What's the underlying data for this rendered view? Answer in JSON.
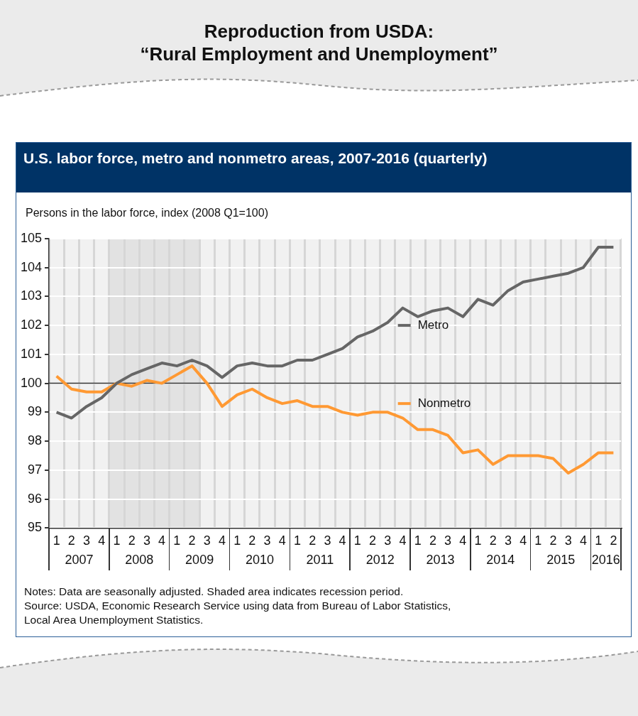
{
  "chart_data": {
    "type": "line",
    "title": "Reproduction from USDA:\n“Rural Employment and Unemployment”",
    "subtitle": "U.S. labor force, metro and nonmetro areas, 2007-2016 (quarterly)",
    "ylabel": "Persons in the labor force, index (2008 Q1=100)",
    "categories": [
      "1",
      "2",
      "3",
      "4",
      "1",
      "2",
      "3",
      "4",
      "1",
      "2",
      "3",
      "4",
      "1",
      "2",
      "3",
      "4",
      "1",
      "2",
      "3",
      "4",
      "1",
      "2",
      "3",
      "4",
      "1",
      "2",
      "3",
      "4",
      "1",
      "2",
      "3",
      "4",
      "1",
      "2",
      "3",
      "4",
      "1",
      "2"
    ],
    "series": [
      {
        "name": "Metro",
        "color": "#666666",
        "values": [
          99.0,
          98.8,
          99.2,
          99.5,
          100.0,
          100.3,
          100.5,
          100.7,
          100.6,
          100.8,
          100.6,
          100.2,
          100.6,
          100.7,
          100.6,
          100.6,
          100.8,
          100.8,
          101.0,
          101.2,
          101.6,
          101.8,
          102.1,
          102.6,
          102.3,
          102.5,
          102.6,
          102.3,
          102.9,
          102.7,
          103.2,
          103.5,
          103.6,
          103.7,
          103.8,
          104.0,
          104.7,
          104.7
        ]
      },
      {
        "name": "Nonmetro",
        "color": "#ff9933",
        "values": [
          100.25,
          99.8,
          99.7,
          99.7,
          100.0,
          99.9,
          100.1,
          100.0,
          100.3,
          100.6,
          100.0,
          99.2,
          99.6,
          99.8,
          99.5,
          99.3,
          99.4,
          99.2,
          99.2,
          99.0,
          98.9,
          99.0,
          99.0,
          98.8,
          98.4,
          98.4,
          98.2,
          97.6,
          97.7,
          97.2,
          97.5,
          97.5,
          97.5,
          97.4,
          96.9,
          97.2,
          97.6,
          97.6
        ]
      }
    ],
    "ylim": [
      95,
      105
    ],
    "yticks": [
      95,
      96,
      97,
      98,
      99,
      100,
      101,
      102,
      103,
      104,
      105
    ],
    "ref_lines": [
      {
        "axis": "y",
        "value": 100,
        "color": "#333333"
      }
    ],
    "grid": true,
    "legend": "center",
    "marker": "none",
    "line_style": "solid",
    "annotations": [
      "2007",
      "2008",
      "2009",
      "2010",
      "2011",
      "2012",
      "2013",
      "2014",
      "2015",
      "2016",
      "Notes: Data are seasonally adjusted. Shaded area indicates recession period.",
      "Source: USDA, Economic Research Service using data from Bureau of Labor Statistics,",
      "Local Area Unemployment Statistics."
    ]
  }
}
